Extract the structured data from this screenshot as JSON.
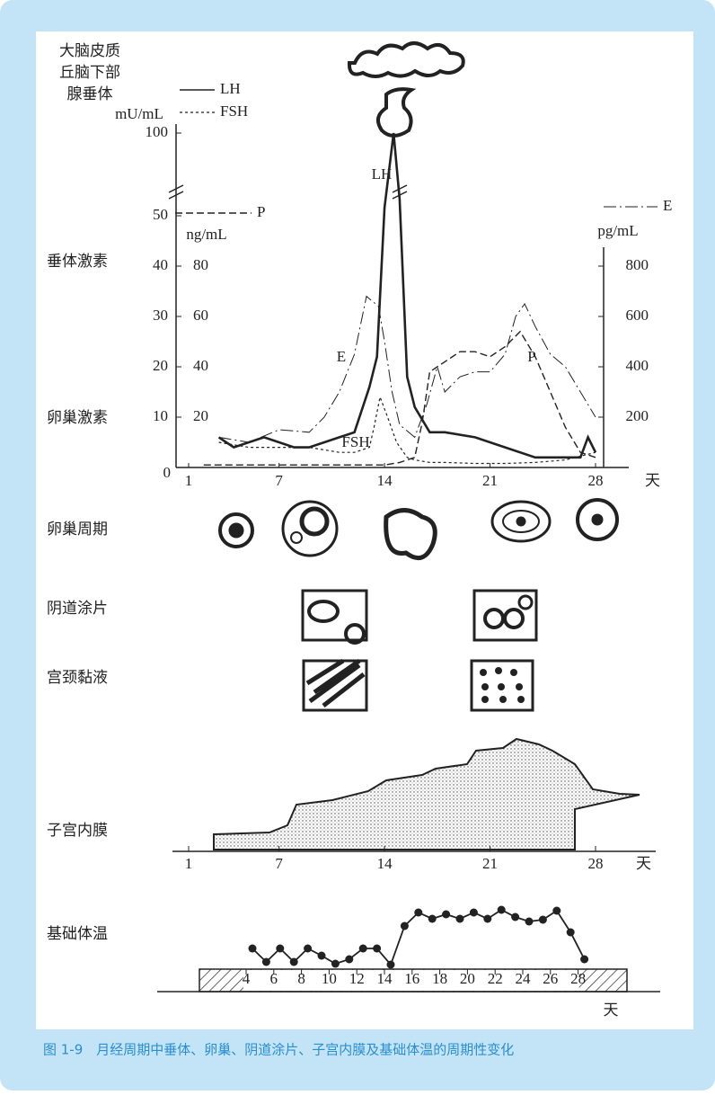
{
  "header_labels": [
    "大脑皮质",
    "丘脑下部",
    "腺垂体"
  ],
  "hormone_chart": {
    "left_axis": {
      "unit": "mU/mL",
      "ticks": [
        0,
        10,
        20,
        30,
        40,
        50,
        100
      ]
    },
    "middle_axis": {
      "unit": "ng/mL",
      "ticks": [
        20,
        40,
        60,
        80
      ]
    },
    "right_axis": {
      "unit": "pg/mL",
      "ticks": [
        200,
        400,
        600,
        800
      ]
    },
    "xticks": [
      1,
      7,
      14,
      21,
      28
    ],
    "x_unit": "天",
    "side_labels": [
      "垂体激素",
      "卵巢激素"
    ],
    "series": [
      {
        "name": "LH",
        "axis": "mU/mL",
        "days": [
          3,
          4,
          6,
          7,
          8,
          9,
          10,
          11,
          12,
          13,
          13.5,
          14,
          14.6,
          15,
          15.5,
          16,
          17,
          18,
          20,
          22,
          24,
          26,
          27,
          27.5,
          28
        ],
        "values": [
          6,
          4,
          6,
          5,
          4,
          4,
          5,
          6,
          7,
          16,
          22,
          55,
          100,
          60,
          18,
          12,
          7,
          7,
          6,
          4,
          2,
          2,
          2,
          6,
          3
        ]
      },
      {
        "name": "FSH",
        "axis": "mU/mL",
        "days": [
          3,
          5,
          7,
          9,
          11,
          12,
          13,
          13.3,
          13.7,
          14.2,
          14.8,
          15.5,
          16,
          17,
          18,
          20,
          22,
          24,
          26,
          28
        ],
        "values": [
          5,
          4,
          4,
          4,
          3,
          3,
          4,
          8,
          14,
          10,
          5,
          2,
          1.5,
          1,
          1,
          0.8,
          0.8,
          1,
          1.5,
          3
        ]
      },
      {
        "name": "P",
        "axis": "ng/mL",
        "days": [
          2,
          14,
          15,
          16,
          16.5,
          17,
          18,
          19,
          20,
          21,
          22,
          23,
          24,
          25,
          26,
          27,
          28
        ],
        "values": [
          1,
          1,
          2,
          4,
          18,
          38,
          42,
          46,
          46,
          44,
          48,
          54,
          44,
          30,
          16,
          6,
          4
        ]
      },
      {
        "name": "E",
        "axis": "pg/mL",
        "days": [
          3,
          5,
          7,
          9,
          10,
          11,
          12,
          12.8,
          13.6,
          14,
          14.5,
          15,
          16,
          16.8,
          17.5,
          18,
          19,
          20,
          21,
          22,
          22.7,
          23.3,
          24,
          25,
          26,
          27,
          28
        ],
        "values": [
          120,
          100,
          150,
          140,
          200,
          300,
          450,
          680,
          640,
          500,
          300,
          170,
          120,
          250,
          400,
          300,
          360,
          380,
          380,
          450,
          600,
          650,
          560,
          450,
          400,
          300,
          200
        ]
      }
    ]
  },
  "stage_labels": [
    "卵巢周期",
    "阴道涂片",
    "宫颈黏液",
    "子宫内膜",
    "基础体温"
  ],
  "endometrium_axis": {
    "ticks": [
      1,
      7,
      14,
      21,
      28
    ],
    "unit": "天"
  },
  "bbt": {
    "ticks": [
      4,
      6,
      8,
      10,
      12,
      14,
      16,
      18,
      20,
      22,
      24,
      26,
      28
    ],
    "unit": "天",
    "days": [
      4,
      5,
      6,
      7,
      8,
      9,
      10,
      11,
      12,
      13,
      14,
      15,
      16,
      17,
      18,
      19,
      20,
      21,
      22,
      23,
      24,
      25,
      26,
      27,
      28
    ],
    "values": [
      36.45,
      36.3,
      36.45,
      36.3,
      36.45,
      36.37,
      36.28,
      36.33,
      36.45,
      36.45,
      36.27,
      36.7,
      36.85,
      36.78,
      36.83,
      36.78,
      36.85,
      36.78,
      36.88,
      36.8,
      36.75,
      36.77,
      36.87,
      36.63,
      36.33
    ]
  },
  "caption": "图 1-9　月经周期中垂体、卵巢、阴道涂片、子宫内膜及基础体温的周期性变化"
}
